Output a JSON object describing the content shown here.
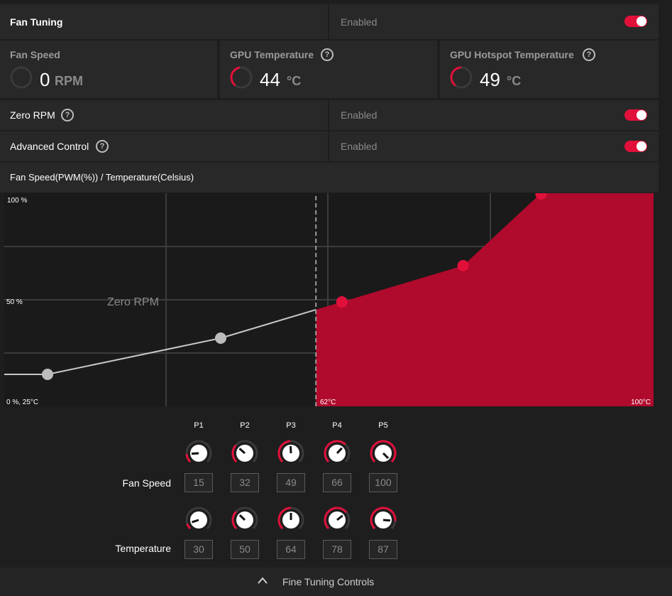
{
  "fan_tuning": {
    "title": "Fan Tuning",
    "status": "Enabled",
    "enabled": true
  },
  "metrics": [
    {
      "title": "Fan Speed",
      "value": "0",
      "unit": "RPM",
      "gauge_fraction": 0.0
    },
    {
      "title": "GPU Temperature",
      "value": "44",
      "unit": "°C",
      "gauge_fraction": 0.3
    },
    {
      "title": "GPU Hotspot Temperature",
      "value": "49",
      "unit": "°C",
      "gauge_fraction": 0.35
    }
  ],
  "zero_rpm": {
    "label": "Zero RPM",
    "status": "Enabled",
    "enabled": true
  },
  "advanced_control": {
    "label": "Advanced Control",
    "status": "Enabled",
    "enabled": true
  },
  "chart_header": "Fan Speed(PWM(%)) / Temperature(Celsius)",
  "chart_data": {
    "type": "area",
    "xlim": [
      25,
      100
    ],
    "ylim": [
      0,
      100
    ],
    "zero_rpm_threshold": 61,
    "zero_rpm_label": "Zero RPM",
    "points": [
      {
        "x": 30,
        "y": 15
      },
      {
        "x": 50,
        "y": 32
      },
      {
        "x": 64,
        "y": 49
      },
      {
        "x": 78,
        "y": 66
      },
      {
        "x": 87,
        "y": 100
      }
    ],
    "tick_labels": {
      "y_top": "100 %",
      "y_mid": "50 %",
      "origin": "0 %, 25°C",
      "x_mid": "62°C",
      "x_max": "100°C"
    },
    "colors": {
      "fill": "#b00a2c",
      "line": "#c8c8c8",
      "point_active": "#e1103a",
      "point_inactive": "#bcbcbc"
    }
  },
  "points_table": {
    "headers": [
      "P1",
      "P2",
      "P3",
      "P4",
      "P5"
    ],
    "fan_speed_label": "Fan Speed",
    "temperature_label": "Temperature",
    "fan_speed": [
      "15",
      "32",
      "49",
      "66",
      "100"
    ],
    "temperature": [
      "30",
      "50",
      "64",
      "78",
      "87"
    ],
    "fan_speed_fraction": [
      0.15,
      0.32,
      0.49,
      0.66,
      1.0
    ],
    "temperature_fraction": [
      0.1,
      0.33,
      0.5,
      0.69,
      0.85
    ]
  },
  "footer": {
    "label": "Fine Tuning Controls",
    "icon": "chevron-up-icon"
  },
  "accent_color": "#e1103a"
}
